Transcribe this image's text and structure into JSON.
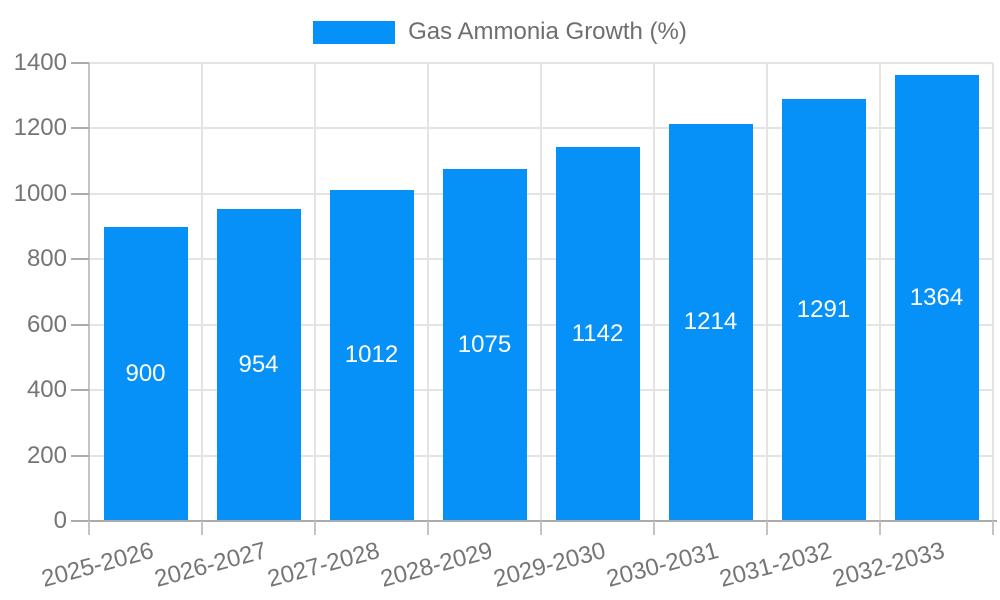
{
  "chart_data": {
    "type": "bar",
    "title": "",
    "legend": "Gas Ammonia Growth (%)",
    "legend_position": "top-center",
    "categories": [
      "2025-2026",
      "2026-2027",
      "2027-2028",
      "2028-2029",
      "2029-2030",
      "2030-2031",
      "2031-2032",
      "2032-2033"
    ],
    "series": [
      {
        "name": "Gas Ammonia Growth (%)",
        "values": [
          900,
          954,
          1012,
          1075,
          1142,
          1214,
          1291,
          1364
        ]
      }
    ],
    "value_labels": [
      "900",
      "954",
      "1012",
      "1075",
      "1142",
      "1214",
      "1291",
      "1364"
    ],
    "xlabel": "",
    "ylabel": "",
    "ylim": [
      0,
      1400
    ],
    "yticks": [
      0,
      200,
      400,
      600,
      800,
      1000,
      1200,
      1400
    ],
    "ytick_labels": [
      "0",
      "200",
      "400",
      "600",
      "800",
      "1000",
      "1200",
      "1400"
    ],
    "grid": "both",
    "x_label_rotation_deg": -15,
    "colors": {
      "bar": "#0591f7",
      "value_label": "#ffffff",
      "axis_text": "#757575",
      "legend_text": "#6e6e6e",
      "gridline": "#e4e4e4",
      "axis_line": "#c4c4c4",
      "tick": "#ababab",
      "background": "#ffffff"
    }
  }
}
